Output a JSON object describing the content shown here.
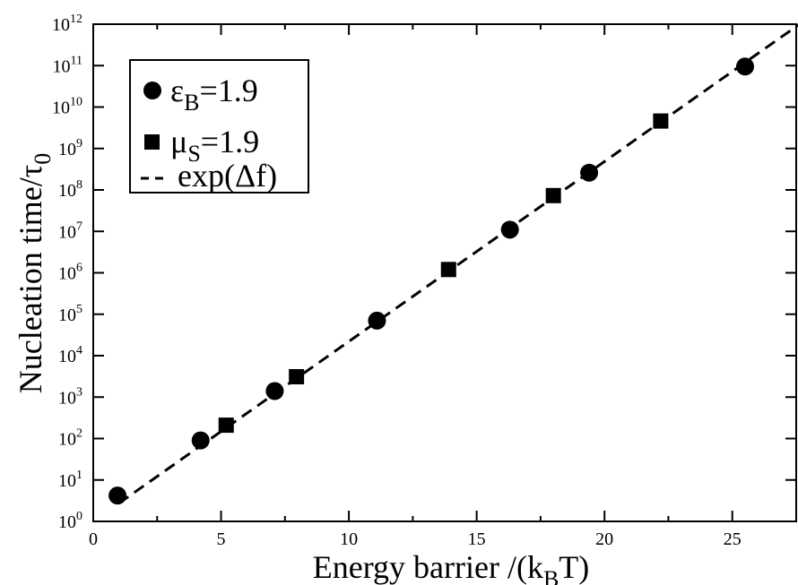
{
  "chart_data": {
    "type": "scatter",
    "xlabel": {
      "main": "Energy barrier /(k",
      "sub": "B",
      "tail": "T)"
    },
    "ylabel": {
      "main": "Nucleation time/τ",
      "sub": "0"
    },
    "xlim": [
      0,
      27.5
    ],
    "ylim_log10": [
      0,
      12
    ],
    "y_scale": "log",
    "x_ticks": [
      0,
      5,
      10,
      15,
      20,
      25
    ],
    "x_tick_labels": [
      "0",
      "5",
      "10",
      "15",
      "20",
      "25"
    ],
    "y_ticks_exp": [
      0,
      1,
      2,
      3,
      4,
      5,
      6,
      7,
      8,
      9,
      10,
      11,
      12
    ],
    "y_tick_base": "10",
    "grid": false,
    "legend_position": "top-left",
    "series": [
      {
        "name": {
          "main": "ε",
          "sub": "B",
          "tail": "=1.9"
        },
        "marker": "circle",
        "color": "#000000",
        "points": [
          {
            "x": 0.95,
            "y": 4.2
          },
          {
            "x": 4.2,
            "y": 90
          },
          {
            "x": 7.1,
            "y": 1400
          },
          {
            "x": 11.1,
            "y": 70000
          },
          {
            "x": 16.3,
            "y": 11000000
          },
          {
            "x": 19.4,
            "y": 260000000
          },
          {
            "x": 25.5,
            "y": 95000000000
          }
        ]
      },
      {
        "name": {
          "main": "μ",
          "sub": "S",
          "tail": "=1.9"
        },
        "marker": "square",
        "color": "#000000",
        "points": [
          {
            "x": 5.2,
            "y": 210
          },
          {
            "x": 7.95,
            "y": 3100
          },
          {
            "x": 13.9,
            "y": 1200000
          },
          {
            "x": 18.0,
            "y": 73000000
          },
          {
            "x": 22.2,
            "y": 4600000000
          }
        ]
      },
      {
        "name": {
          "main": "exp(Δf)",
          "sub": "",
          "tail": ""
        },
        "marker": "dashed-line",
        "color": "#000000",
        "function": "y = exp(x)",
        "x_range": [
          1.0,
          27.6
        ]
      }
    ]
  }
}
